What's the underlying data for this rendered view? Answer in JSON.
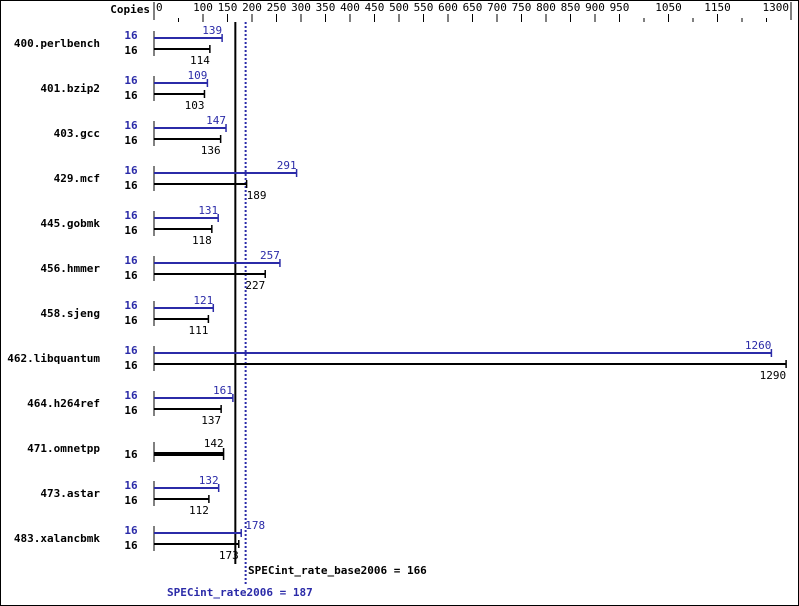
{
  "chart_data": {
    "type": "bar",
    "orientation": "horizontal",
    "copies_header": "Copies",
    "x_ticks_labeled": [
      0,
      100,
      150,
      200,
      250,
      300,
      350,
      400,
      450,
      500,
      550,
      600,
      650,
      700,
      750,
      800,
      850,
      900,
      950,
      1050,
      1150,
      1300
    ],
    "x_ticks_minor": [
      50,
      1000,
      1100,
      1200,
      1250
    ],
    "xlim": [
      0,
      1300
    ],
    "colors": {
      "peak": "#2b2ba8",
      "base": "#000000"
    },
    "benchmarks": [
      {
        "name": "400.perlbench",
        "peak_copies": "16",
        "base_copies": "16",
        "peak": 139,
        "base": 114
      },
      {
        "name": "401.bzip2",
        "peak_copies": "16",
        "base_copies": "16",
        "peak": 109,
        "base": 103
      },
      {
        "name": "403.gcc",
        "peak_copies": "16",
        "base_copies": "16",
        "peak": 147,
        "base": 136
      },
      {
        "name": "429.mcf",
        "peak_copies": "16",
        "base_copies": "16",
        "peak": 291,
        "base": 189
      },
      {
        "name": "445.gobmk",
        "peak_copies": "16",
        "base_copies": "16",
        "peak": 131,
        "base": 118
      },
      {
        "name": "456.hmmer",
        "peak_copies": "16",
        "base_copies": "16",
        "peak": 257,
        "base": 227
      },
      {
        "name": "458.sjeng",
        "peak_copies": "16",
        "base_copies": "16",
        "peak": 121,
        "base": 111
      },
      {
        "name": "462.libquantum",
        "peak_copies": "16",
        "base_copies": "16",
        "peak": 1260,
        "base": 1290
      },
      {
        "name": "464.h264ref",
        "peak_copies": "16",
        "base_copies": "16",
        "peak": 161,
        "base": 137
      },
      {
        "name": "471.omnetpp",
        "peak_copies": null,
        "base_copies": "16",
        "peak": null,
        "base": 142
      },
      {
        "name": "473.astar",
        "peak_copies": "16",
        "base_copies": "16",
        "peak": 132,
        "base": 112
      },
      {
        "name": "483.xalancbmk",
        "peak_copies": "16",
        "base_copies": "16",
        "peak": 178,
        "base": 173
      }
    ],
    "base_summary": {
      "label": "SPECint_rate_base2006 = 166",
      "value": 166
    },
    "peak_summary": {
      "label": "SPECint_rate2006 = 187",
      "value": 187
    }
  }
}
